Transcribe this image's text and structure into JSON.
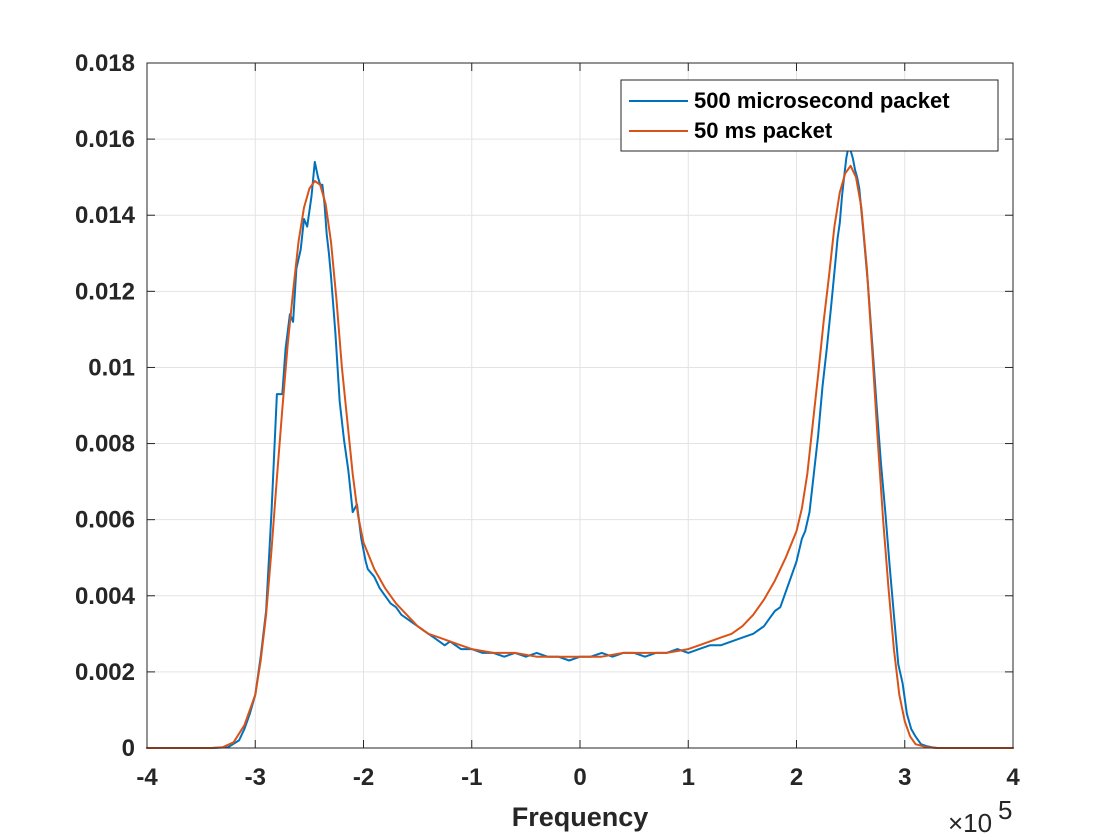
{
  "chart_data": {
    "type": "line",
    "title": "",
    "xlabel": "Frequency",
    "ylabel": "",
    "x_multiplier": "×10",
    "x_multiplier_exponent": "5",
    "xlim": [
      -400000,
      400000
    ],
    "ylim": [
      0,
      0.018
    ],
    "x_ticks": [
      -400000,
      -300000,
      -200000,
      -100000,
      0,
      100000,
      200000,
      300000,
      400000
    ],
    "x_tick_labels": [
      "-4",
      "-3",
      "-2",
      "-1",
      "0",
      "1",
      "2",
      "3",
      "4"
    ],
    "y_ticks": [
      0,
      0.002,
      0.004,
      0.006,
      0.008,
      0.01,
      0.012,
      0.014,
      0.016,
      0.018
    ],
    "y_tick_labels": [
      "0",
      "0.002",
      "0.004",
      "0.006",
      "0.008",
      "0.01",
      "0.012",
      "0.014",
      "0.016",
      "0.018"
    ],
    "grid": true,
    "legend_position": "top-right",
    "series": [
      {
        "name": "500 microsecond packet",
        "color": "#0072BD",
        "x": [
          -400000,
          -380000,
          -360000,
          -340000,
          -325000,
          -315000,
          -310000,
          -305000,
          -300000,
          -295000,
          -290000,
          -285000,
          -280000,
          -275000,
          -272000,
          -268000,
          -265000,
          -262000,
          -258000,
          -255000,
          -252000,
          -248000,
          -245000,
          -242000,
          -240000,
          -238000,
          -236000,
          -234000,
          -232000,
          -230000,
          -226000,
          -222000,
          -218000,
          -214000,
          -210000,
          -206000,
          -202000,
          -200000,
          -198000,
          -196000,
          -190000,
          -185000,
          -180000,
          -175000,
          -170000,
          -165000,
          -160000,
          -155000,
          -150000,
          -145000,
          -140000,
          -135000,
          -130000,
          -125000,
          -120000,
          -115000,
          -110000,
          -100000,
          -90000,
          -80000,
          -70000,
          -60000,
          -50000,
          -40000,
          -30000,
          -20000,
          -10000,
          0,
          10000,
          20000,
          30000,
          40000,
          50000,
          60000,
          70000,
          80000,
          90000,
          100000,
          110000,
          120000,
          130000,
          140000,
          150000,
          160000,
          170000,
          175000,
          180000,
          185000,
          190000,
          195000,
          200000,
          205000,
          208000,
          212000,
          216000,
          220000,
          224000,
          228000,
          232000,
          236000,
          238000,
          240000,
          242000,
          244000,
          246000,
          248000,
          250000,
          252000,
          254000,
          256000,
          258000,
          262000,
          266000,
          270000,
          274000,
          278000,
          282000,
          286000,
          290000,
          294000,
          298000,
          302000,
          306000,
          310000,
          315000,
          320000,
          325000,
          330000,
          340000,
          360000,
          380000,
          400000
        ],
        "y": [
          0,
          0,
          0,
          0,
          2e-05,
          0.0002,
          0.0005,
          0.0009,
          0.0014,
          0.0024,
          0.0036,
          0.0062,
          0.0093,
          0.0093,
          0.0105,
          0.0114,
          0.0112,
          0.0126,
          0.0131,
          0.0139,
          0.0137,
          0.0145,
          0.0154,
          0.015,
          0.0148,
          0.0148,
          0.0143,
          0.0135,
          0.013,
          0.0124,
          0.0109,
          0.0091,
          0.0081,
          0.0073,
          0.0062,
          0.0064,
          0.0055,
          0.0052,
          0.0049,
          0.0047,
          0.0045,
          0.0042,
          0.004,
          0.0038,
          0.0037,
          0.0035,
          0.0034,
          0.0033,
          0.0032,
          0.0031,
          0.003,
          0.0029,
          0.0028,
          0.0027,
          0.0028,
          0.0027,
          0.0026,
          0.0026,
          0.0025,
          0.0025,
          0.0024,
          0.0025,
          0.0024,
          0.0025,
          0.0024,
          0.0024,
          0.0023,
          0.0024,
          0.0024,
          0.0025,
          0.0024,
          0.0025,
          0.0025,
          0.0024,
          0.0025,
          0.0025,
          0.0026,
          0.0025,
          0.0026,
          0.0027,
          0.0027,
          0.0028,
          0.0029,
          0.003,
          0.0032,
          0.0034,
          0.0036,
          0.0037,
          0.0041,
          0.0045,
          0.0049,
          0.0055,
          0.0057,
          0.0062,
          0.0072,
          0.0082,
          0.0095,
          0.0105,
          0.0116,
          0.0128,
          0.0134,
          0.0138,
          0.0145,
          0.015,
          0.0155,
          0.0158,
          0.0157,
          0.0155,
          0.0152,
          0.015,
          0.0147,
          0.0135,
          0.0122,
          0.0106,
          0.009,
          0.0075,
          0.0062,
          0.0048,
          0.0035,
          0.0022,
          0.0017,
          0.0009,
          0.0005,
          0.0003,
          0.0001,
          5e-05,
          2e-05,
          0,
          0,
          0,
          0,
          0
        ]
      },
      {
        "name": "50 ms packet",
        "color": "#D95319",
        "x": [
          -400000,
          -360000,
          -340000,
          -330000,
          -320000,
          -310000,
          -300000,
          -295000,
          -290000,
          -285000,
          -280000,
          -275000,
          -270000,
          -265000,
          -260000,
          -255000,
          -250000,
          -245000,
          -240000,
          -235000,
          -230000,
          -225000,
          -220000,
          -215000,
          -210000,
          -205000,
          -200000,
          -190000,
          -180000,
          -170000,
          -160000,
          -150000,
          -140000,
          -130000,
          -120000,
          -110000,
          -100000,
          -80000,
          -60000,
          -40000,
          -20000,
          0,
          20000,
          40000,
          60000,
          80000,
          100000,
          110000,
          120000,
          130000,
          140000,
          150000,
          160000,
          170000,
          180000,
          190000,
          200000,
          205000,
          210000,
          215000,
          220000,
          225000,
          230000,
          235000,
          240000,
          245000,
          250000,
          255000,
          260000,
          265000,
          270000,
          275000,
          280000,
          285000,
          290000,
          295000,
          300000,
          305000,
          310000,
          320000,
          330000,
          340000,
          360000,
          400000
        ],
        "y": [
          0,
          0,
          0,
          2e-05,
          0.00015,
          0.0006,
          0.0014,
          0.0023,
          0.0035,
          0.0052,
          0.0071,
          0.0089,
          0.0106,
          0.012,
          0.0133,
          0.0142,
          0.0147,
          0.0149,
          0.0148,
          0.0143,
          0.0133,
          0.0118,
          0.01,
          0.0086,
          0.0072,
          0.0061,
          0.0054,
          0.0047,
          0.0042,
          0.0038,
          0.0035,
          0.0032,
          0.003,
          0.0029,
          0.0028,
          0.0027,
          0.0026,
          0.0025,
          0.0025,
          0.0024,
          0.0024,
          0.0024,
          0.0024,
          0.0025,
          0.0025,
          0.0025,
          0.0026,
          0.0027,
          0.0028,
          0.0029,
          0.003,
          0.0032,
          0.0035,
          0.0039,
          0.0044,
          0.005,
          0.0057,
          0.0063,
          0.0072,
          0.0085,
          0.0098,
          0.0112,
          0.0124,
          0.0137,
          0.0146,
          0.0151,
          0.0153,
          0.015,
          0.0142,
          0.0126,
          0.0104,
          0.0081,
          0.006,
          0.0042,
          0.0026,
          0.0014,
          0.0007,
          0.0003,
          0.0001,
          2e-05,
          0,
          0,
          0,
          0
        ]
      }
    ]
  }
}
